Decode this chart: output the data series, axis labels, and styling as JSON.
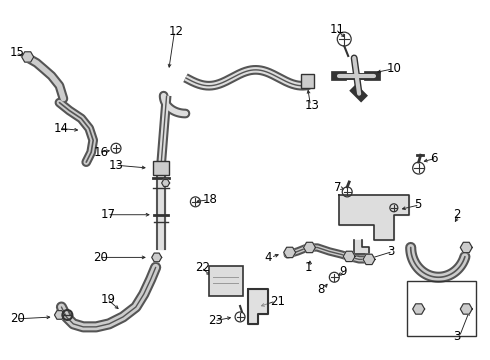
{
  "bg_color": "#ffffff",
  "fig_width": 4.9,
  "fig_height": 3.6,
  "dpi": 100,
  "font_size": 8.5,
  "gray": "#555555",
  "dgray": "#333333",
  "lgray": "#999999"
}
